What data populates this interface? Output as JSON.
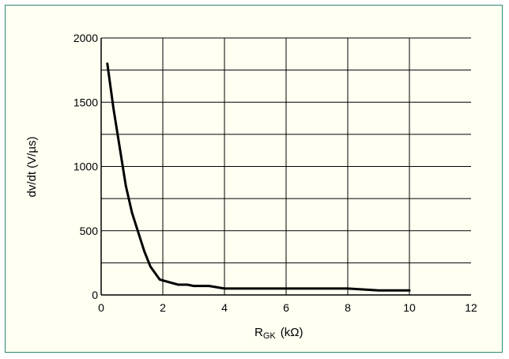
{
  "chart_data": {
    "type": "line",
    "title": "",
    "xlabel": "R",
    "xlabel_sub": "GK",
    "xlabel_unit": "(kΩ)",
    "ylabel": "dv/dt (V/µs)",
    "xlim": [
      0,
      12
    ],
    "ylim": [
      0,
      2000
    ],
    "x_ticks": [
      0,
      2,
      4,
      6,
      8,
      10,
      12
    ],
    "y_ticks": [
      0,
      500,
      1000,
      1500,
      2000
    ],
    "x_tick_labels": [
      "0",
      "2",
      "4",
      "6",
      "8",
      "10",
      "12"
    ],
    "y_tick_labels": [
      "0",
      "500",
      "1000",
      "1500",
      "2000"
    ],
    "grid": true,
    "x_gridlines": [
      2,
      4,
      6,
      8,
      10
    ],
    "y_gridlines": [
      250,
      500,
      750,
      1000,
      1250,
      1500,
      1750
    ],
    "colors": {
      "frame": "#2e8b74",
      "background": "#fffff2",
      "line": "#000000",
      "grid": "#000000"
    },
    "series": [
      {
        "x": [
          0.2,
          0.4,
          0.6,
          0.8,
          1.0,
          1.2,
          1.4,
          1.6,
          1.9,
          2.2,
          2.5,
          2.8,
          3.0,
          3.5,
          4.0,
          5.0,
          6.0,
          7.0,
          8.0,
          9.0,
          10.0
        ],
        "y": [
          1800,
          1450,
          1150,
          850,
          640,
          490,
          340,
          220,
          120,
          100,
          80,
          80,
          70,
          70,
          50,
          50,
          50,
          50,
          50,
          35,
          35
        ]
      }
    ]
  }
}
